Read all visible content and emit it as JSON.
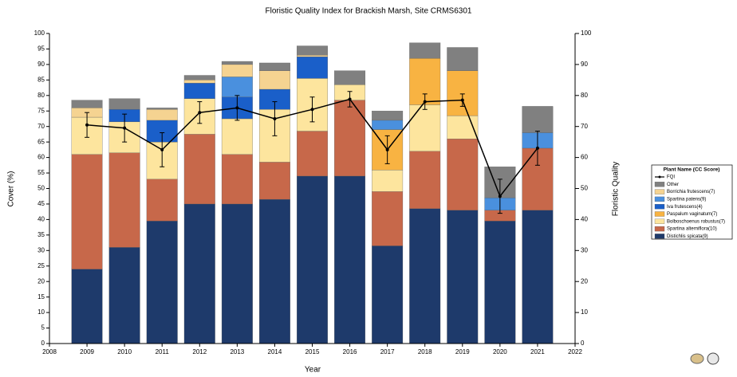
{
  "chart_data": {
    "type": "bar",
    "title": "Floristic Quality Index for Brackish Marsh, Site CRMS6301",
    "xlabel": "Year",
    "ylabel": "Cover (%)",
    "y2label": "Floristic Quality",
    "legend_title": "Plant Name (CC Score)",
    "legend": "right",
    "x": [
      2009,
      2010,
      2011,
      2012,
      2013,
      2014,
      2015,
      2016,
      2017,
      2018,
      2019,
      2020,
      2021
    ],
    "xlim": [
      2008,
      2022
    ],
    "xticks": [
      2008,
      2009,
      2010,
      2011,
      2012,
      2013,
      2014,
      2015,
      2016,
      2017,
      2018,
      2019,
      2020,
      2021,
      2022
    ],
    "ylim": [
      0,
      100
    ],
    "yticks": [
      0,
      5,
      10,
      15,
      20,
      25,
      30,
      35,
      40,
      45,
      50,
      55,
      60,
      65,
      70,
      75,
      80,
      85,
      90,
      95,
      100
    ],
    "y2lim": [
      0,
      100
    ],
    "y2ticks": [
      0,
      10,
      20,
      30,
      40,
      50,
      60,
      70,
      80,
      90,
      100
    ],
    "stacked": true,
    "series": [
      {
        "name": "Distichlis spicata(9)",
        "color": "#1e3a6b",
        "values": [
          24,
          31,
          39.5,
          45,
          45,
          46.5,
          54,
          54,
          31.5,
          43.5,
          43,
          39.5,
          43
        ]
      },
      {
        "name": "Spartina alterniflora(10)",
        "color": "#c7684a",
        "values": [
          37,
          30.5,
          13.5,
          22.5,
          16,
          12,
          14.5,
          24.5,
          17.5,
          18.5,
          23,
          3.5,
          20
        ]
      },
      {
        "name": "Bolboschoenus robustus(7)",
        "color": "#fde59e",
        "values": [
          12,
          10,
          12,
          11.5,
          11.5,
          17,
          17,
          5,
          7,
          15,
          7.5,
          0,
          0
        ]
      },
      {
        "name": "Paspalum vaginatum(7)",
        "color": "#f8b342",
        "values": [
          0,
          0,
          0,
          0,
          0,
          0,
          0,
          0,
          13,
          15,
          14.5,
          0,
          0
        ]
      },
      {
        "name": "Iva frutescens(4)",
        "color": "#1a5fc9",
        "values": [
          0,
          4,
          7,
          5,
          7,
          6.5,
          7,
          0,
          0,
          0,
          0,
          0,
          0
        ]
      },
      {
        "name": "Spartina patens(9)",
        "color": "#4a90de",
        "values": [
          0,
          0,
          0,
          0,
          6.5,
          0,
          0,
          0,
          3,
          0,
          0,
          4,
          5
        ]
      },
      {
        "name": "Borrichia frutescens(7)",
        "color": "#f5d391",
        "values": [
          3,
          0,
          3.5,
          1,
          4,
          6,
          0.5,
          0,
          0,
          0,
          0,
          0,
          0
        ]
      },
      {
        "name": "Other",
        "color": "#808080",
        "values": [
          2.5,
          3.5,
          0.5,
          1.5,
          1,
          2.5,
          3,
          4.5,
          3,
          5,
          7.5,
          10,
          8.5
        ]
      }
    ],
    "line": {
      "name": "FQI",
      "color": "#000000",
      "axis": "y2",
      "values": [
        70.5,
        69.5,
        62.5,
        74.5,
        76,
        72.5,
        75.5,
        78.8,
        62.5,
        78,
        78.5,
        47.5,
        63
      ],
      "errors": [
        4,
        4.5,
        5.5,
        3.5,
        4,
        5.5,
        4,
        2.5,
        4.5,
        2.5,
        2,
        5.5,
        5.5
      ]
    }
  }
}
